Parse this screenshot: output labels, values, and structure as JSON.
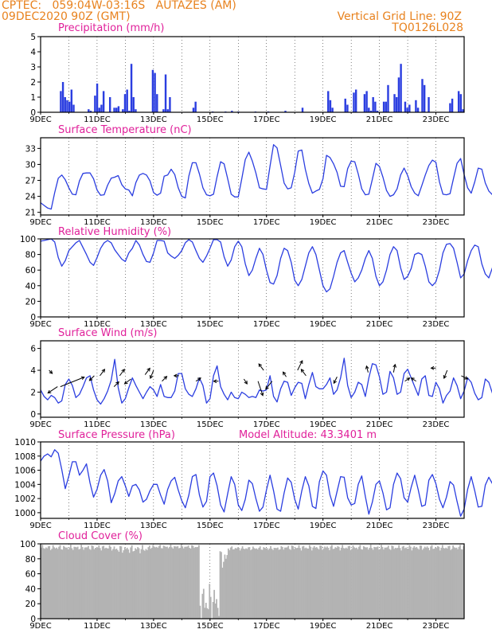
{
  "header": {
    "line1": "CPTEC:   059:04W-03:16S   AUTAZES (AM)",
    "line2": "09DEC2020 90Z (GMT)",
    "grid_note": "Vertical Grid Line: 90Z",
    "code": "TQ0126L028"
  },
  "colors": {
    "header": "#e8821e",
    "panel_title": "#e0209a",
    "line": "#2b3ee0",
    "bar": "#2b3ee0",
    "cloud": "#b3b3b3",
    "frame": "#000000",
    "arrow": "#000000"
  },
  "x_axis": {
    "day_start": 9,
    "day_end": 24,
    "tick_labels": [
      "9DEC",
      "11DEC",
      "13DEC",
      "15DEC",
      "17DEC",
      "19DEC",
      "21DEC",
      "23DEC"
    ],
    "tick_days": [
      9,
      11,
      13,
      15,
      17,
      19,
      21,
      23
    ]
  },
  "chart_data": [
    {
      "id": "precip",
      "type": "bar",
      "title": "Precipitation (mm/h)",
      "ylim": [
        0,
        5
      ],
      "yticks": [
        0,
        1,
        2,
        3,
        4,
        5
      ],
      "samples_per_day": 8,
      "values": [
        0,
        0,
        0,
        0,
        0,
        0,
        0,
        0,
        0,
        1.4,
        2.0,
        1.0,
        0.8,
        0.7,
        1.5,
        0.5,
        0,
        0,
        0,
        0,
        0,
        0,
        0.2,
        0.1,
        0,
        1.1,
        1.9,
        0.3,
        0.5,
        1.4,
        0,
        0,
        1.0,
        0,
        0.3,
        0.3,
        0.4,
        0,
        0.2,
        1.2,
        1.5,
        0.1,
        3.2,
        1.0,
        0.2,
        0,
        0,
        0,
        0,
        0,
        0,
        0,
        2.8,
        2.6,
        1.2,
        0,
        0,
        0.2,
        2.5,
        0.2,
        1.0,
        0,
        0,
        0,
        0,
        0,
        0,
        0,
        0,
        0,
        0,
        0.3,
        0.7,
        0,
        0,
        0,
        0,
        0,
        0,
        0,
        0.05,
        0,
        0,
        0,
        0,
        0,
        0.05,
        0,
        0,
        0.1,
        0,
        0,
        0.05,
        0,
        0,
        0,
        0,
        0,
        0,
        0,
        0.05,
        0,
        0,
        0,
        0,
        0,
        0.05,
        0,
        0,
        0,
        0,
        0,
        0,
        0,
        0.1,
        0,
        0,
        0,
        0,
        0,
        0,
        0,
        0.3,
        0,
        0,
        0,
        0,
        0,
        0,
        0,
        0,
        0,
        0,
        0,
        1.4,
        0.8,
        0.3,
        0,
        0,
        0,
        0,
        0,
        0.9,
        0.5,
        0,
        0,
        1.3,
        1.5,
        0,
        0,
        0,
        1.2,
        1.4,
        0.3,
        0.1,
        1.0,
        0.7,
        0.1,
        0,
        0,
        0.7,
        0.7,
        1.8,
        0,
        0,
        1.2,
        1.0,
        2.3,
        3.2,
        0,
        0.7,
        0.3,
        0.5,
        0,
        0,
        0.8,
        0.3,
        0,
        2.2,
        1.8,
        0,
        1.0,
        0,
        0,
        0,
        0,
        0,
        0,
        0,
        0,
        0,
        0.6,
        0.9,
        0,
        0,
        1.4,
        1.2,
        0.2
      ],
      "bars": []
    },
    {
      "id": "temp",
      "type": "line",
      "title": "Surface Temperature (nC)",
      "ylim": [
        20.5,
        35
      ],
      "yticks": [
        21,
        24,
        27,
        30,
        33
      ],
      "samples_per_day": 8,
      "values": [
        22.8,
        22.3,
        21.8,
        21.6,
        24.7,
        27.4,
        28.0,
        27.1,
        25.6,
        24.4,
        24.3,
        26.9,
        28.3,
        28.4,
        28.4,
        27.3,
        25.2,
        24.2,
        24.3,
        26.1,
        27.4,
        27.6,
        27.9,
        26.2,
        25.4,
        25.2,
        24.1,
        26.6,
        28.0,
        28.3,
        28.0,
        26.9,
        24.7,
        24.2,
        24.6,
        27.8,
        28.0,
        29.1,
        28.1,
        25.6,
        24.0,
        23.7,
        27.8,
        30.3,
        30.3,
        28.2,
        25.6,
        24.3,
        24.1,
        24.4,
        27.7,
        30.5,
        30.1,
        27.3,
        24.4,
        23.9,
        23.9,
        27.3,
        30.9,
        32.3,
        30.6,
        28.4,
        25.6,
        25.4,
        25.3,
        29.7,
        33.7,
        33.1,
        29.8,
        26.5,
        25.4,
        25.6,
        28.5,
        32.5,
        32.7,
        29.1,
        26.4,
        24.6,
        25.0,
        25.3,
        27.3,
        31.7,
        31.3,
        30.1,
        28.5,
        25.9,
        25.8,
        29.2,
        30.6,
        30.5,
        28.2,
        25.4,
        24.3,
        24.4,
        27.2,
        30.2,
        29.6,
        27.6,
        25.1,
        24.0,
        24.3,
        25.4,
        28.0,
        29.3,
        27.9,
        25.8,
        24.6,
        24.1,
        26.0,
        28.0,
        29.8,
        30.8,
        30.4,
        26.7,
        24.4,
        24.3,
        24.5,
        27.4,
        30.2,
        31.1,
        28.1,
        25.6,
        24.6,
        26.7,
        29.3,
        29.1,
        26.5,
        25.0,
        24.3,
        25.9,
        29.3,
        29.1,
        25.4,
        24.0,
        24.0,
        25.6,
        28.7,
        30.5,
        29.4,
        26.4,
        24.8,
        24.6,
        26.3,
        28.8,
        28.9,
        27.1,
        25.1,
        24.4,
        24.3,
        24.5,
        27.5,
        31.7,
        31.6,
        28.1,
        25.6,
        25.3,
        25.1,
        25.2,
        30.0,
        30.0,
        27.1,
        25.2,
        24.5,
        24.6,
        25.2,
        30.1,
        31.4,
        29.9,
        28.0,
        26.3,
        25.8,
        26.5,
        29.5,
        30.0,
        29.1,
        26.5,
        25.0,
        25.0,
        24.8,
        27.2,
        31.4,
        31.2,
        28.4,
        26.8,
        26.2,
        26.1,
        28.7,
        29.6,
        29.3,
        29.4
      ]
    },
    {
      "id": "rh",
      "type": "line",
      "title": "Relative Humidity (%)",
      "ylim": [
        0,
        100
      ],
      "yticks": [
        0,
        20,
        40,
        60,
        80,
        100
      ],
      "samples_per_day": 8,
      "values": [
        97,
        98,
        99,
        100,
        96,
        76,
        65,
        72,
        85,
        90,
        95,
        98,
        89,
        80,
        70,
        66,
        76,
        88,
        95,
        98,
        95,
        86,
        80,
        74,
        71,
        82,
        88,
        98,
        92,
        80,
        71,
        70,
        82,
        98,
        98,
        97,
        82,
        78,
        75,
        79,
        85,
        95,
        99,
        96,
        85,
        75,
        70,
        78,
        88,
        99,
        99,
        96,
        77,
        65,
        73,
        90,
        97,
        90,
        68,
        53,
        60,
        75,
        88,
        80,
        60,
        44,
        42,
        53,
        75,
        88,
        85,
        70,
        47,
        40,
        48,
        65,
        82,
        90,
        80,
        60,
        40,
        32,
        36,
        52,
        70,
        82,
        85,
        70,
        56,
        45,
        50,
        60,
        75,
        85,
        75,
        52,
        40,
        45,
        60,
        80,
        90,
        85,
        63,
        48,
        52,
        62,
        80,
        82,
        80,
        65,
        45,
        40,
        45,
        60,
        82,
        93,
        94,
        88,
        70,
        50,
        55,
        72,
        85,
        92,
        90,
        68,
        55,
        50,
        63,
        80,
        95,
        97,
        78,
        62,
        63,
        75,
        89,
        95,
        95,
        85,
        62,
        52,
        52,
        66,
        82,
        91,
        88,
        75,
        62,
        57,
        58,
        75,
        88,
        93,
        90,
        66,
        52,
        45,
        55,
        78,
        90,
        92,
        88,
        65,
        50,
        54,
        72,
        84,
        90,
        90,
        84,
        60,
        51,
        60,
        83,
        92,
        93,
        85,
        67,
        52,
        45,
        49,
        62,
        80,
        91,
        92,
        88,
        70,
        60,
        66,
        72,
        74
      ]
    },
    {
      "id": "wind",
      "type": "line",
      "title": "Surface Wind (m/s)",
      "ylim": [
        -0.3,
        6.7
      ],
      "yticks": [
        0,
        2,
        4,
        6
      ],
      "samples_per_day": 8,
      "values": [
        2.2,
        1.6,
        1.3,
        1.7,
        1.5,
        1.0,
        1.2,
        2.7,
        3.2,
        2.6,
        1.5,
        1.8,
        2.5,
        3.3,
        3.5,
        2.2,
        1.3,
        0.9,
        1.4,
        2.1,
        3.1,
        5.0,
        2.4,
        1.0,
        1.4,
        2.4,
        3.3,
        2.6,
        2.0,
        1.4,
        2.0,
        2.5,
        2.2,
        1.6,
        2.7,
        1.6,
        1.5,
        1.5,
        2.1,
        3.7,
        3.7,
        2.3,
        1.8,
        1.6,
        2.3,
        3.3,
        2.6,
        1.0,
        1.4,
        3.5,
        4.4,
        2.5,
        1.8,
        1.3,
        2.0,
        1.5,
        1.4,
        2.0,
        1.8,
        1.5,
        1.6,
        1.5,
        2.2,
        2.1,
        2.2,
        3.5,
        1.6,
        1.1,
        2.3,
        3.0,
        2.9,
        1.7,
        2.4,
        2.9,
        2.8,
        1.4,
        2.7,
        3.8,
        2.5,
        2.3,
        2.3,
        2.7,
        3.3,
        1.8,
        2.2,
        3.3,
        5.1,
        2.6,
        1.5,
        2.0,
        2.9,
        2.7,
        1.6,
        3.3,
        4.6,
        4.5,
        3.4,
        1.8,
        2.0,
        3.9,
        3.3,
        1.8,
        2.0,
        3.7,
        4.1,
        3.3,
        2.5,
        1.7,
        3.2,
        3.5,
        1.7,
        1.6,
        2.9,
        2.3,
        1.0,
        1.7,
        2.1,
        3.3,
        2.6,
        1.4,
        2.1,
        3.3,
        2.9,
        1.9,
        1.3,
        1.5,
        3.2,
        2.9,
        1.9,
        2.3,
        3.2,
        3.6,
        3.0,
        1.8,
        1.5,
        3.1,
        4.0,
        3.8,
        3.4,
        2.0,
        1.7,
        3.0,
        3.3,
        3.3,
        1.8,
        1.1,
        1.6,
        2.8,
        3.2,
        3.1,
        2.1,
        1.8,
        3.4,
        3.2,
        2.9,
        2.3,
        1.5,
        1.7,
        3.6,
        3.4,
        2.5,
        1.6,
        1.8,
        2.0,
        3.6,
        2.9,
        2.1,
        1.7,
        2.4,
        3.0,
        1.8,
        1.4,
        2.3,
        3.1,
        5.4,
        4.2,
        2.6,
        2.6,
        3.7,
        3.4,
        2.4,
        2.1,
        2.1,
        3.1,
        3.3,
        2.7,
        2.4,
        2.7,
        2.7,
        1.9,
        1.0,
        0.5
      ],
      "arrows": [
        {
          "day": 9.3,
          "speed": 4.0,
          "dx": 4,
          "dy": 4
        },
        {
          "day": 9.6,
          "speed": 2.5,
          "dx": -12,
          "dy": 8
        },
        {
          "day": 9.7,
          "speed": 2.5,
          "dx": 30,
          "dy": -12
        },
        {
          "day": 10.9,
          "speed": 3.5,
          "dx": -6,
          "dy": 6
        },
        {
          "day": 11.1,
          "speed": 3.5,
          "dx": 6,
          "dy": -8
        },
        {
          "day": 11.6,
          "speed": 2.5,
          "dx": 6,
          "dy": -6
        },
        {
          "day": 11.8,
          "speed": 3.5,
          "dx": 6,
          "dy": -8
        },
        {
          "day": 12.2,
          "speed": 3.2,
          "dx": -8,
          "dy": 6
        },
        {
          "day": 12.7,
          "speed": 3.6,
          "dx": 6,
          "dy": -8
        },
        {
          "day": 13.0,
          "speed": 4.0,
          "dx": -4,
          "dy": 10
        },
        {
          "day": 13.3,
          "speed": 3.0,
          "dx": 6,
          "dy": -6
        },
        {
          "day": 13.9,
          "speed": 3.5,
          "dx": -6,
          "dy": 0
        },
        {
          "day": 14.5,
          "speed": 3.0,
          "dx": 6,
          "dy": -4
        },
        {
          "day": 15.3,
          "speed": 3.0,
          "dx": -6,
          "dy": 0
        },
        {
          "day": 16.2,
          "speed": 3.2,
          "dx": 4,
          "dy": 6
        },
        {
          "day": 16.7,
          "speed": 3.0,
          "dx": 6,
          "dy": 18
        },
        {
          "day": 16.9,
          "speed": 4.0,
          "dx": -6,
          "dy": -8
        },
        {
          "day": 17.2,
          "speed": 3.0,
          "dx": -8,
          "dy": 10
        },
        {
          "day": 17.7,
          "speed": 3.4,
          "dx": -4,
          "dy": -6
        },
        {
          "day": 18.1,
          "speed": 4.0,
          "dx": 6,
          "dy": -12
        },
        {
          "day": 18.4,
          "speed": 3.5,
          "dx": -6,
          "dy": -8
        },
        {
          "day": 19.5,
          "speed": 3.4,
          "dx": -4,
          "dy": 8
        },
        {
          "day": 20.6,
          "speed": 3.8,
          "dx": -2,
          "dy": -8
        },
        {
          "day": 21.5,
          "speed": 3.8,
          "dx": 2,
          "dy": -10
        },
        {
          "day": 21.9,
          "speed": 3.0,
          "dx": 6,
          "dy": -4
        },
        {
          "day": 22.3,
          "speed": 3.0,
          "dx": -6,
          "dy": -4
        },
        {
          "day": 23.0,
          "speed": 4.2,
          "dx": -6,
          "dy": 0
        },
        {
          "day": 23.4,
          "speed": 4.0,
          "dx": -4,
          "dy": 10
        },
        {
          "day": 23.9,
          "speed": 3.5,
          "dx": 8,
          "dy": 4
        }
      ]
    },
    {
      "id": "pres",
      "type": "line",
      "title": "Surface Pressure (hPa)",
      "annotation": "Model Altitude: 43.3401 m",
      "ylim": [
        999.2,
        1010
      ],
      "yticks": [
        1000,
        1002,
        1004,
        1006,
        1008,
        1010
      ],
      "samples_per_day": 8,
      "values": [
        1007.3,
        1008.0,
        1008.3,
        1007.9,
        1008.9,
        1008.4,
        1006.1,
        1003.4,
        1005.2,
        1007.2,
        1007.2,
        1005.3,
        1006.0,
        1006.9,
        1004.2,
        1002.2,
        1003.3,
        1005.3,
        1006.1,
        1004.5,
        1001.4,
        1002.7,
        1004.5,
        1005.1,
        1003.8,
        1002.3,
        1003.8,
        1004.0,
        1003.2,
        1001.5,
        1001.9,
        1003.1,
        1004.0,
        1004.0,
        1002.5,
        1001.2,
        1003.3,
        1004.5,
        1005.0,
        1003.2,
        1001.7,
        1000.7,
        1002.5,
        1005.1,
        1005.4,
        1002.5,
        1000.8,
        1001.6,
        1005.1,
        1005.6,
        1003.8,
        1001.1,
        1000.1,
        1002.7,
        1005.1,
        1004.0,
        1001.1,
        1000.3,
        1001.9,
        1004.6,
        1004.1,
        1002.0,
        1000.2,
        1000.8,
        1003.2,
        1005.3,
        1003.1,
        1000.5,
        1000.2,
        1002.8,
        1004.9,
        1004.3,
        1001.9,
        1000.5,
        1003.1,
        1005.1,
        1003.8,
        1000.9,
        1000.6,
        1004.4,
        1005.9,
        1005.3,
        1002.5,
        1000.9,
        1003.0,
        1005.1,
        1005.0,
        1002.1,
        1001.1,
        1001.3,
        1004.0,
        1005.2,
        1002.3,
        999.8,
        1001.5,
        1004.0,
        1004.5,
        1002.8,
        1000.4,
        1000.7,
        1004.0,
        1005.6,
        1004.8,
        1002.1,
        1001.5,
        1003.6,
        1005.3,
        1003.2,
        1000.9,
        1001.1,
        1004.6,
        1005.4,
        1004.1,
        1001.9,
        1000.7,
        1002.2,
        1004.4,
        1003.9,
        1001.6,
        999.5,
        1000.5,
        1003.3,
        1005.1,
        1003.1,
        1000.8,
        1000.9,
        1003.9,
        1005.0,
        1004.1,
        1001.2,
        1000.4,
        1002.8,
        1005.3,
        1004.4,
        1001.0,
        1000.9,
        1003.3,
        1004.9,
        1004.2,
        1001.4,
        1000.0,
        1001.1,
        1004.9,
        1005.6,
        1003.2,
        1000.6,
        1000.8,
        1003.8,
        1004.6,
        1003.1,
        1000.9,
        1000.0,
        1001.2,
        1004.2,
        1005.1,
        1002.2,
        1000.3,
        1001.7,
        1004.4,
        1004.3,
        1001.9,
        1000.1,
        1001.4,
        1004.9,
        1004.5,
        1001.1,
        999.8,
        1001.2,
        1003.8,
        1004.8,
        1002.3,
        1000.4,
        1001.2,
        1004.1,
        1005.2,
        1003.0,
        1000.3,
        1000.6,
        1003.6,
        1005.5,
        1004.0,
        1001.4,
        1000.5,
        1002.9,
        1005.0,
        1004.2,
        1001.5,
        1000.2,
        1000.6,
        1004.1,
        1005.3,
        1004.1,
        1000.9,
        999.2
      ]
    },
    {
      "id": "cloud",
      "type": "bar",
      "title": "Cloud Cover (%)",
      "ylim": [
        0,
        100
      ],
      "yticks": [
        0,
        20,
        40,
        60,
        80,
        100
      ],
      "samples_per_day": 24,
      "segments": [
        {
          "from": 9.0,
          "to": 11.5,
          "base": 95,
          "amp": 4
        },
        {
          "from": 11.5,
          "to": 12.8,
          "base": 93,
          "amp": 6
        },
        {
          "from": 12.8,
          "to": 14.6,
          "base": 96,
          "amp": 3
        },
        {
          "from": 14.6,
          "to": 15.3,
          "base": 22,
          "amp": 30
        },
        {
          "from": 15.3,
          "to": 15.6,
          "base": 80,
          "amp": 15
        },
        {
          "from": 15.6,
          "to": 17.5,
          "base": 94,
          "amp": 3
        },
        {
          "from": 17.5,
          "to": 24.0,
          "base": 95,
          "amp": 4
        }
      ]
    }
  ]
}
